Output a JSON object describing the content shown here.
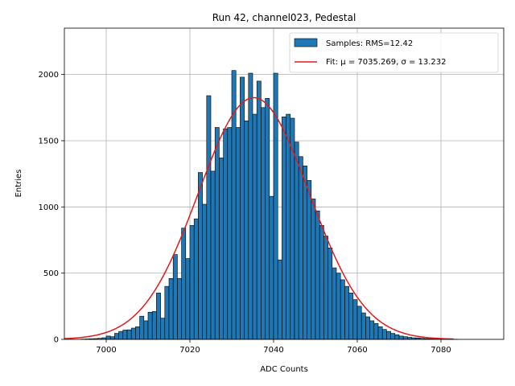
{
  "chart_data": {
    "type": "bar",
    "title": "Run 42, channel023, Pedestal",
    "xlabel": "ADC Counts",
    "ylabel": "Entries",
    "xlim": [
      6990,
      7095
    ],
    "ylim": [
      0,
      2350
    ],
    "xticks": [
      7000,
      7020,
      7040,
      7060,
      7080
    ],
    "yticks": [
      0,
      500,
      1000,
      1500,
      2000
    ],
    "grid": true,
    "legend_position": "top-right",
    "bin_width": 1,
    "series": [
      {
        "name": "Samples: RMS=12.42",
        "kind": "histogram",
        "color": "#1f77b4",
        "edge_color": "#000000",
        "bins": [
          6994,
          6995,
          6996,
          6997,
          6998,
          6999,
          7000,
          7001,
          7002,
          7003,
          7004,
          7005,
          7006,
          7007,
          7008,
          7009,
          7010,
          7011,
          7012,
          7013,
          7014,
          7015,
          7016,
          7017,
          7018,
          7019,
          7020,
          7021,
          7022,
          7023,
          7024,
          7025,
          7026,
          7027,
          7028,
          7029,
          7030,
          7031,
          7032,
          7033,
          7034,
          7035,
          7036,
          7037,
          7038,
          7039,
          7040,
          7041,
          7042,
          7043,
          7044,
          7045,
          7046,
          7047,
          7048,
          7049,
          7050,
          7051,
          7052,
          7053,
          7054,
          7055,
          7056,
          7057,
          7058,
          7059,
          7060,
          7061,
          7062,
          7063,
          7064,
          7065,
          7066,
          7067,
          7068,
          7069,
          7070,
          7071,
          7072,
          7073,
          7074,
          7075,
          7076,
          7077,
          7078,
          7079,
          7080,
          7081,
          7082,
          7083
        ],
        "counts": [
          2,
          3,
          4,
          6,
          8,
          12,
          25,
          20,
          45,
          60,
          70,
          72,
          85,
          95,
          175,
          140,
          205,
          210,
          350,
          160,
          400,
          460,
          640,
          460,
          840,
          610,
          860,
          910,
          1260,
          1020,
          1840,
          1270,
          1600,
          1370,
          1590,
          1600,
          2030,
          1600,
          1980,
          1650,
          2010,
          1700,
          1950,
          1750,
          1820,
          1080,
          2010,
          600,
          1680,
          1700,
          1670,
          1490,
          1380,
          1310,
          1200,
          1060,
          970,
          860,
          780,
          690,
          540,
          500,
          450,
          400,
          350,
          300,
          250,
          200,
          170,
          140,
          120,
          95,
          75,
          60,
          45,
          35,
          25,
          20,
          15,
          12,
          10,
          8,
          6,
          5,
          4,
          3,
          2,
          2,
          1,
          1
        ]
      },
      {
        "name": "Fit: μ = 7035.269, σ = 13.232",
        "kind": "gaussian",
        "color": "#e31a1c",
        "mu": 7035.269,
        "sigma": 13.232,
        "amplitude": 1825,
        "x_range": [
          6990,
          7083
        ]
      }
    ]
  }
}
